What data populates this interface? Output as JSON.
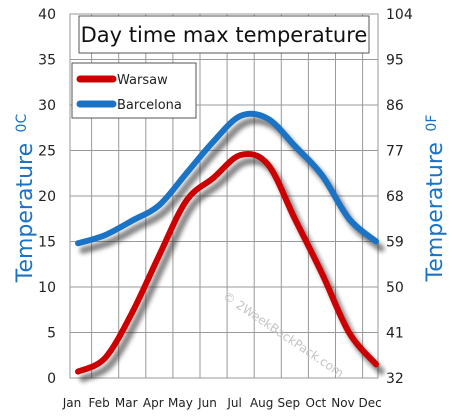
{
  "chart_data": {
    "type": "line",
    "title": "Day time max temperature",
    "categories": [
      "Jan",
      "Feb",
      "Mar",
      "Apr",
      "May",
      "Jun",
      "Jul",
      "Aug",
      "Sep",
      "Oct",
      "Nov",
      "Dec"
    ],
    "series": [
      {
        "name": "Warsaw",
        "color": "#cc0000",
        "values": [
          0.7,
          2.2,
          7.2,
          13.5,
          19.5,
          22.0,
          24.5,
          23.5,
          17.5,
          11.5,
          5.0,
          1.5
        ]
      },
      {
        "name": "Barcelona",
        "color": "#1a73c4",
        "values": [
          14.8,
          15.7,
          17.3,
          19.0,
          22.5,
          26.0,
          28.8,
          28.5,
          25.5,
          22.3,
          17.5,
          15.0
        ]
      }
    ],
    "ylabel": "Temperature",
    "ylabel_unit": "0C",
    "y2label": "Temperature",
    "y2label_unit": "0F",
    "ylim": [
      0,
      40
    ],
    "y_ticks": [
      "0",
      "5",
      "10",
      "15",
      "20",
      "25",
      "30",
      "35",
      "40"
    ],
    "y2_ticks": [
      "32",
      "41",
      "50",
      "59",
      "68",
      "77",
      "86",
      "95",
      "104"
    ],
    "grid": true,
    "legend_position": "top-left",
    "watermark": "© 2WeekBackPack.com"
  }
}
